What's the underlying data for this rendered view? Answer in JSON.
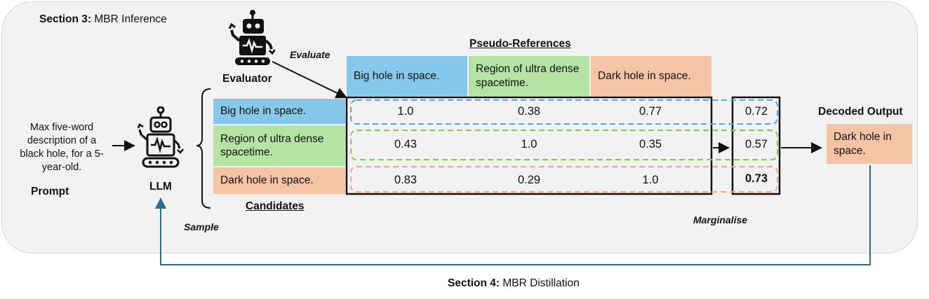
{
  "section3": {
    "bold": "Section 3:",
    "rest": " MBR Inference"
  },
  "section4": {
    "bold": "Section 4:",
    "rest": " MBR Distillation"
  },
  "prompt": {
    "text": "Max five-word description of a black hole, for a 5-year-old.",
    "label": "Prompt"
  },
  "llm": {
    "label": "LLM"
  },
  "evaluator": {
    "label": "Evaluator"
  },
  "labels": {
    "evaluate": "Evaluate",
    "sample": "Sample",
    "marginalise": "Marginalise",
    "candidates": "Candidates",
    "pseudo_references": "Pseudo-References"
  },
  "pseudo_references": [
    "Big hole in space.",
    "Region of ultra dense spacetime.",
    "Dark hole in space."
  ],
  "candidates": [
    "Big hole in space.",
    "Region of ultra dense spacetime.",
    "Dark hole in space."
  ],
  "matrix": [
    [
      "1.0",
      "0.38",
      "0.77"
    ],
    [
      "0.43",
      "1.0",
      "0.35"
    ],
    [
      "0.83",
      "0.29",
      "1.0"
    ]
  ],
  "marginal": [
    "0.72",
    "0.57",
    "0.73"
  ],
  "decoded": {
    "label": "Decoded Output",
    "text": "Dark hole in space."
  },
  "colors": {
    "blue": "#86c8ea",
    "green": "#b4e3a3",
    "salmon": "#f5c3a6",
    "blue_dash": "#4aa9e8",
    "green_dash": "#7fcf4c",
    "salmon_dash": "#f0a784",
    "distill_arrow": "#2c6e8e"
  }
}
